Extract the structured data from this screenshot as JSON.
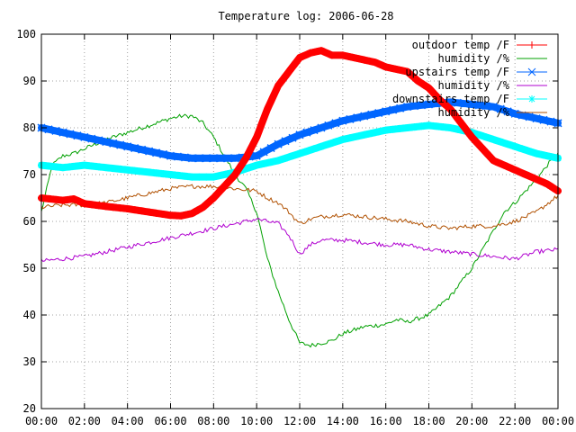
{
  "chart_data": {
    "type": "line",
    "title": "Temperature log: 2006-06-28",
    "xlabel": "",
    "ylabel": "",
    "ylim": [
      20,
      100
    ],
    "yticks": [
      "20",
      "30",
      "40",
      "50",
      "60",
      "70",
      "80",
      "90",
      "100"
    ],
    "xticks": [
      "00:00",
      "02:00",
      "04:00",
      "06:00",
      "08:00",
      "10:00",
      "12:00",
      "14:00",
      "16:00",
      "18:00",
      "20:00",
      "22:00",
      "00:00"
    ],
    "x_unit": "hours",
    "grid": true,
    "legend_position": "top-right",
    "series": [
      {
        "name": "outdoor temp /F",
        "color": "#ff0000",
        "marker": "plus",
        "style": "thick-markers",
        "points": [
          [
            0,
            65
          ],
          [
            1,
            64.5
          ],
          [
            1.5,
            64.8
          ],
          [
            2,
            63.8
          ],
          [
            3,
            63.2
          ],
          [
            4,
            62.7
          ],
          [
            5,
            62
          ],
          [
            6,
            61.3
          ],
          [
            6.5,
            61.2
          ],
          [
            7,
            61.7
          ],
          [
            7.5,
            63
          ],
          [
            8,
            65
          ],
          [
            8.5,
            67.5
          ],
          [
            9,
            70
          ],
          [
            9.5,
            73.5
          ],
          [
            10,
            78
          ],
          [
            10.5,
            84
          ],
          [
            11,
            89
          ],
          [
            11.5,
            92
          ],
          [
            12,
            95
          ],
          [
            12.5,
            96
          ],
          [
            13,
            96.5
          ],
          [
            13.5,
            95.5
          ],
          [
            14,
            95.5
          ],
          [
            14.5,
            95
          ],
          [
            15,
            94.5
          ],
          [
            15.5,
            94
          ],
          [
            16,
            93
          ],
          [
            16.5,
            92.5
          ],
          [
            17,
            92
          ],
          [
            17.5,
            90
          ],
          [
            18,
            88.5
          ],
          [
            18.5,
            86
          ],
          [
            19,
            84
          ],
          [
            19.5,
            81
          ],
          [
            20,
            78
          ],
          [
            20.5,
            75.5
          ],
          [
            21,
            73
          ],
          [
            21.5,
            72
          ],
          [
            22,
            71
          ],
          [
            22.5,
            70
          ],
          [
            23,
            69
          ],
          [
            23.5,
            68
          ],
          [
            24,
            66.5
          ]
        ]
      },
      {
        "name": "humidity /%",
        "color": "#00a000",
        "marker": "none",
        "style": "thin",
        "points": [
          [
            0,
            62
          ],
          [
            0.5,
            72
          ],
          [
            1,
            74
          ],
          [
            1.5,
            74.5
          ],
          [
            2,
            75.5
          ],
          [
            3,
            77.5
          ],
          [
            4,
            79
          ],
          [
            5,
            80.5
          ],
          [
            6,
            82
          ],
          [
            6.5,
            82.5
          ],
          [
            7,
            82.5
          ],
          [
            7.5,
            81
          ],
          [
            8,
            78
          ],
          [
            8.5,
            74
          ],
          [
            9,
            70
          ],
          [
            9.5,
            67
          ],
          [
            10,
            62
          ],
          [
            10.5,
            52
          ],
          [
            11,
            45
          ],
          [
            11.5,
            39
          ],
          [
            12,
            34
          ],
          [
            12.5,
            33.5
          ],
          [
            13,
            34
          ],
          [
            13.5,
            34.5
          ],
          [
            14,
            36
          ],
          [
            15,
            37.5
          ],
          [
            16,
            38
          ],
          [
            16.5,
            39
          ],
          [
            17,
            38.5
          ],
          [
            18,
            40
          ],
          [
            19,
            44
          ],
          [
            19.5,
            47
          ],
          [
            20,
            50
          ],
          [
            20.5,
            54
          ],
          [
            21,
            58
          ],
          [
            21.5,
            62
          ],
          [
            22,
            64
          ],
          [
            22.5,
            66.5
          ],
          [
            23,
            69
          ],
          [
            23.5,
            72
          ],
          [
            24,
            74.5
          ]
        ]
      },
      {
        "name": "upstairs temp /F",
        "color": "#0066ff",
        "marker": "x",
        "style": "thick-markers",
        "points": [
          [
            0,
            80
          ],
          [
            1,
            79
          ],
          [
            2,
            78
          ],
          [
            3,
            77
          ],
          [
            4,
            76
          ],
          [
            5,
            75
          ],
          [
            6,
            74
          ],
          [
            7,
            73.5
          ],
          [
            8,
            73.5
          ],
          [
            9,
            73.5
          ],
          [
            10,
            74
          ],
          [
            11,
            76.5
          ],
          [
            12,
            78.5
          ],
          [
            13,
            80
          ],
          [
            14,
            81.5
          ],
          [
            15,
            82.5
          ],
          [
            16,
            83.5
          ],
          [
            17,
            84.5
          ],
          [
            18,
            85
          ],
          [
            19,
            85.5
          ],
          [
            20,
            85
          ],
          [
            21,
            84.5
          ],
          [
            22,
            83
          ],
          [
            23,
            82
          ],
          [
            24,
            81
          ]
        ]
      },
      {
        "name": "humidity /%",
        "color": "#b000d0",
        "marker": "none",
        "style": "thin",
        "points": [
          [
            0,
            51.5
          ],
          [
            1,
            52
          ],
          [
            2,
            52.5
          ],
          [
            3,
            53.5
          ],
          [
            4,
            54.5
          ],
          [
            5,
            55.5
          ],
          [
            6,
            56.5
          ],
          [
            7,
            57.5
          ],
          [
            8,
            58.5
          ],
          [
            9,
            59.5
          ],
          [
            10,
            60.5
          ],
          [
            10.5,
            60
          ],
          [
            11,
            59.5
          ],
          [
            11.5,
            57
          ],
          [
            12,
            53
          ],
          [
            12.5,
            55
          ],
          [
            13,
            56
          ],
          [
            14,
            56
          ],
          [
            15,
            55.5
          ],
          [
            16,
            55
          ],
          [
            17,
            55
          ],
          [
            18,
            54
          ],
          [
            19,
            53.5
          ],
          [
            20,
            53
          ],
          [
            21,
            52.5
          ],
          [
            22,
            52
          ],
          [
            23,
            53.5
          ],
          [
            24,
            54
          ]
        ]
      },
      {
        "name": "downstairs temp /F",
        "color": "#00ffff",
        "marker": "star",
        "style": "thick-markers",
        "points": [
          [
            0,
            72
          ],
          [
            1,
            71.5
          ],
          [
            2,
            72
          ],
          [
            3,
            71.5
          ],
          [
            4,
            71
          ],
          [
            5,
            70.5
          ],
          [
            6,
            70
          ],
          [
            7,
            69.5
          ],
          [
            8,
            69.5
          ],
          [
            9,
            70.5
          ],
          [
            10,
            72
          ],
          [
            11,
            73
          ],
          [
            12,
            74.5
          ],
          [
            13,
            76
          ],
          [
            14,
            77.5
          ],
          [
            15,
            78.5
          ],
          [
            16,
            79.5
          ],
          [
            17,
            80
          ],
          [
            18,
            80.5
          ],
          [
            19,
            80
          ],
          [
            20,
            79
          ],
          [
            21,
            77.5
          ],
          [
            22,
            76
          ],
          [
            23,
            74.5
          ],
          [
            24,
            73.5
          ]
        ]
      },
      {
        "name": "humidity /%",
        "color": "#b05000",
        "marker": "none",
        "style": "thin",
        "points": [
          [
            0,
            63
          ],
          [
            1,
            63.5
          ],
          [
            2,
            63.5
          ],
          [
            3,
            64
          ],
          [
            4,
            65
          ],
          [
            5,
            66
          ],
          [
            6,
            67
          ],
          [
            7,
            67.5
          ],
          [
            8,
            67.5
          ],
          [
            9,
            67
          ],
          [
            10,
            66.5
          ],
          [
            10.5,
            65
          ],
          [
            11,
            64
          ],
          [
            11.5,
            62
          ],
          [
            12,
            59.5
          ],
          [
            12.5,
            60.5
          ],
          [
            13,
            61
          ],
          [
            14,
            61.5
          ],
          [
            15,
            61
          ],
          [
            16,
            60.5
          ],
          [
            17,
            60
          ],
          [
            18,
            59
          ],
          [
            19,
            58.5
          ],
          [
            20,
            59
          ],
          [
            21,
            59
          ],
          [
            22,
            60
          ],
          [
            23,
            62
          ],
          [
            24,
            65.5
          ]
        ]
      }
    ]
  }
}
